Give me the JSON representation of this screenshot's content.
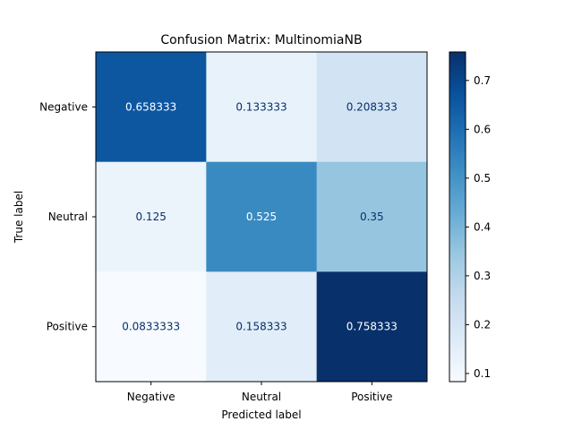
{
  "chart_data": {
    "type": "heatmap",
    "title": "Confusion Matrix: MultinomiaNB",
    "xlabel": "Predicted label",
    "ylabel": "True label",
    "x_categories": [
      "Negative",
      "Neutral",
      "Positive"
    ],
    "y_categories": [
      "Negative",
      "Neutral",
      "Positive"
    ],
    "values": [
      [
        0.658333,
        0.133333,
        0.208333
      ],
      [
        0.125,
        0.525,
        0.35
      ],
      [
        0.0833333,
        0.158333,
        0.758333
      ]
    ],
    "cell_labels": [
      [
        "0.658333",
        "0.133333",
        "0.208333"
      ],
      [
        "0.125",
        "0.525",
        "0.35"
      ],
      [
        "0.0833333",
        "0.158333",
        "0.758333"
      ]
    ],
    "colormap": "Blues",
    "vmin": 0.0833333,
    "vmax": 0.758333,
    "colorbar_ticks": [
      "0.1",
      "0.2",
      "0.3",
      "0.4",
      "0.5",
      "0.6",
      "0.7"
    ],
    "grid": false
  }
}
